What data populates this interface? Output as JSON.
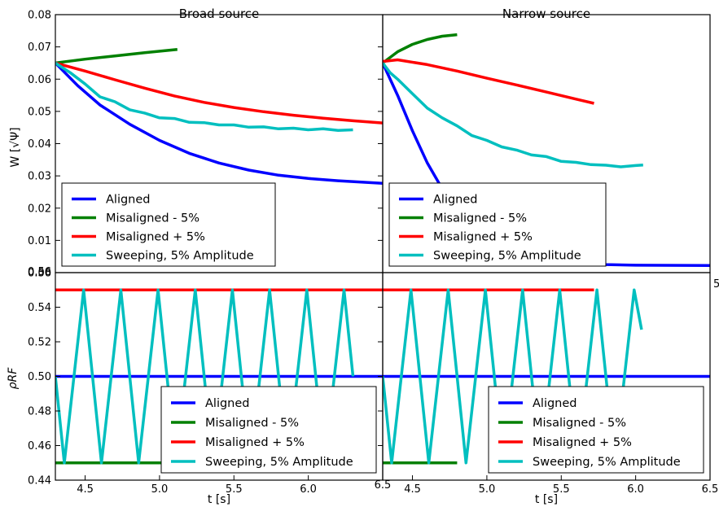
{
  "chart_data": [
    {
      "type": "line",
      "panel": "top-left",
      "title": "Broad source",
      "ylabel": "W [√Ψ]",
      "xlabel": "",
      "xlim": [
        4.3,
        6.5
      ],
      "ylim": [
        0.0,
        0.08
      ],
      "yticks": [
        "0.00",
        "0.01",
        "0.02",
        "0.03",
        "0.04",
        "0.05",
        "0.06",
        "0.07",
        "0.08"
      ],
      "legend_location": "lower-left",
      "series": [
        {
          "name": "Aligned",
          "color": "#0000ff",
          "x": [
            4.3,
            4.45,
            4.6,
            4.8,
            5.0,
            5.2,
            5.4,
            5.6,
            5.8,
            6.0,
            6.2,
            6.5
          ],
          "y": [
            0.065,
            0.058,
            0.052,
            0.046,
            0.041,
            0.037,
            0.034,
            0.0318,
            0.0302,
            0.0292,
            0.0285,
            0.0277
          ]
        },
        {
          "name": "Misaligned - 5%",
          "color": "#008000",
          "x": [
            4.3,
            4.5,
            4.7,
            4.9,
            5.12
          ],
          "y": [
            0.065,
            0.0662,
            0.0672,
            0.0682,
            0.0692
          ]
        },
        {
          "name": "Misaligned + 5%",
          "color": "#ff0000",
          "x": [
            4.3,
            4.5,
            4.7,
            4.9,
            5.1,
            5.3,
            5.5,
            5.7,
            5.9,
            6.1,
            6.3,
            6.5
          ],
          "y": [
            0.065,
            0.0625,
            0.0598,
            0.0572,
            0.0548,
            0.0528,
            0.0512,
            0.0499,
            0.0488,
            0.0479,
            0.0471,
            0.0464
          ]
        },
        {
          "name": "Sweeping, 5% Amplitude",
          "color": "#00bfbf",
          "x": [
            4.3,
            4.4,
            4.5,
            4.6,
            4.7,
            4.8,
            4.9,
            5.0,
            5.1,
            5.2,
            5.3,
            5.4,
            5.5,
            5.6,
            5.7,
            5.8,
            5.9,
            6.0,
            6.1,
            6.2,
            6.3
          ],
          "y": [
            0.065,
            0.062,
            0.0585,
            0.0545,
            0.053,
            0.0505,
            0.0495,
            0.048,
            0.0478,
            0.0466,
            0.0465,
            0.0458,
            0.0458,
            0.0451,
            0.0452,
            0.0446,
            0.0448,
            0.0443,
            0.0446,
            0.0441,
            0.0443
          ]
        }
      ]
    },
    {
      "type": "line",
      "panel": "top-right",
      "title": "Narrow source",
      "ylabel": "",
      "xlabel": "",
      "xlim": [
        4.3,
        6.5
      ],
      "ylim": [
        0.0,
        0.08
      ],
      "legend_location": "lower-left",
      "series": [
        {
          "name": "Aligned",
          "color": "#0000ff",
          "x": [
            4.3,
            4.4,
            4.5,
            4.6,
            4.7,
            4.8,
            4.9,
            5.0,
            5.2,
            5.4,
            5.6,
            5.8,
            6.0,
            6.5
          ],
          "y": [
            0.065,
            0.055,
            0.044,
            0.034,
            0.026,
            0.019,
            0.0135,
            0.0095,
            0.0055,
            0.0038,
            0.003,
            0.0025,
            0.0023,
            0.0022
          ]
        },
        {
          "name": "Misaligned - 5%",
          "color": "#008000",
          "x": [
            4.3,
            4.4,
            4.5,
            4.6,
            4.7,
            4.8
          ],
          "y": [
            0.065,
            0.0685,
            0.0708,
            0.0723,
            0.0733,
            0.0738
          ]
        },
        {
          "name": "Misaligned + 5%",
          "color": "#ff0000",
          "x": [
            4.3,
            4.4,
            4.6,
            4.8,
            5.0,
            5.2,
            5.4,
            5.6,
            5.72
          ],
          "y": [
            0.0655,
            0.066,
            0.0645,
            0.0625,
            0.0603,
            0.0582,
            0.056,
            0.0538,
            0.0525
          ]
        },
        {
          "name": "Sweeping, 5% Amplitude",
          "color": "#00bfbf",
          "x": [
            4.3,
            4.35,
            4.4,
            4.5,
            4.6,
            4.7,
            4.8,
            4.9,
            5.0,
            5.1,
            5.2,
            5.3,
            5.4,
            5.5,
            5.6,
            5.7,
            5.8,
            5.9,
            6.0,
            6.05
          ],
          "y": [
            0.065,
            0.062,
            0.06,
            0.0555,
            0.051,
            0.048,
            0.0455,
            0.0425,
            0.041,
            0.039,
            0.038,
            0.0365,
            0.036,
            0.0345,
            0.0342,
            0.0335,
            0.0333,
            0.0328,
            0.0332,
            0.0334
          ]
        }
      ]
    },
    {
      "type": "line",
      "panel": "bottom-left",
      "title": "",
      "ylabel": "ρRF",
      "xlabel": "t [s]",
      "xlim": [
        4.3,
        6.5
      ],
      "ylim": [
        0.44,
        0.56
      ],
      "xticks": [
        "4.5",
        "5.0",
        "5.5",
        "6.0"
      ],
      "yticks": [
        "0.44",
        "0.46",
        "0.48",
        "0.50",
        "0.52",
        "0.54",
        "0.56"
      ],
      "legend_location": "lower-right",
      "series": [
        {
          "name": "Aligned",
          "color": "#0000ff",
          "x": [
            4.3,
            6.5
          ],
          "y": [
            0.5,
            0.5
          ]
        },
        {
          "name": "Misaligned - 5%",
          "color": "#008000",
          "x": [
            4.3,
            5.12
          ],
          "y": [
            0.45,
            0.45
          ]
        },
        {
          "name": "Misaligned + 5%",
          "color": "#ff0000",
          "x": [
            4.3,
            6.5
          ],
          "y": [
            0.55,
            0.55
          ]
        },
        {
          "name": "Sweeping, 5% Amplitude",
          "color": "#00bfbf",
          "x": [
            4.3,
            4.36,
            4.49,
            4.61,
            4.74,
            4.86,
            4.99,
            5.11,
            5.24,
            5.36,
            5.49,
            5.61,
            5.74,
            5.86,
            5.99,
            6.11,
            6.24,
            6.3
          ],
          "y": [
            0.5,
            0.45,
            0.55,
            0.45,
            0.55,
            0.45,
            0.55,
            0.45,
            0.55,
            0.45,
            0.55,
            0.45,
            0.55,
            0.45,
            0.55,
            0.45,
            0.55,
            0.5
          ]
        }
      ]
    },
    {
      "type": "line",
      "panel": "bottom-right",
      "title": "",
      "ylabel": "",
      "xlabel": "t [s]",
      "xlim": [
        4.3,
        6.5
      ],
      "ylim": [
        0.44,
        0.56
      ],
      "xticks": [
        "4.5",
        "5.0",
        "5.5",
        "6.0",
        "6.5"
      ],
      "legend_location": "lower-right",
      "series": [
        {
          "name": "Aligned",
          "color": "#0000ff",
          "x": [
            4.3,
            6.5
          ],
          "y": [
            0.5,
            0.5
          ]
        },
        {
          "name": "Misaligned - 5%",
          "color": "#008000",
          "x": [
            4.3,
            4.8
          ],
          "y": [
            0.45,
            0.45
          ]
        },
        {
          "name": "Misaligned + 5%",
          "color": "#ff0000",
          "x": [
            4.3,
            5.72
          ],
          "y": [
            0.55,
            0.55
          ]
        },
        {
          "name": "Sweeping, 5% Amplitude",
          "color": "#00bfbf",
          "x": [
            4.3,
            4.36,
            4.49,
            4.61,
            4.74,
            4.86,
            4.99,
            5.11,
            5.24,
            5.36,
            5.49,
            5.61,
            5.74,
            5.86,
            5.99,
            6.04
          ],
          "y": [
            0.5,
            0.45,
            0.55,
            0.45,
            0.55,
            0.45,
            0.55,
            0.45,
            0.55,
            0.45,
            0.55,
            0.45,
            0.55,
            0.45,
            0.55,
            0.527
          ]
        }
      ]
    }
  ],
  "stray_labels": {
    "top_right_bottom_tick": "5",
    "bottom_left_right_tick": "6.5"
  }
}
